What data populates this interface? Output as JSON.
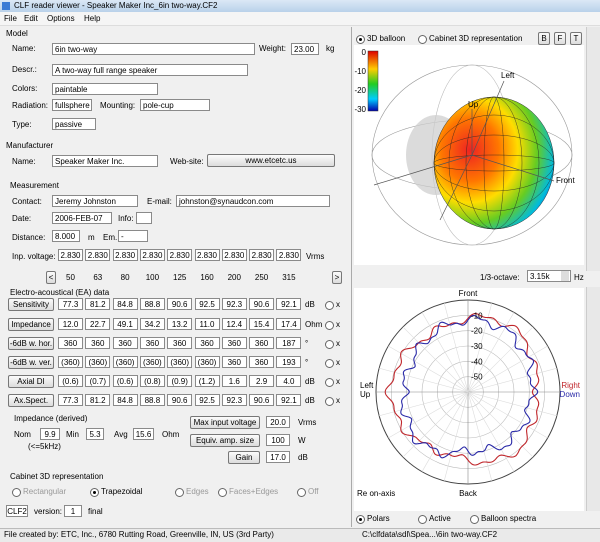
{
  "window": {
    "title": "CLF reader viewer - Speaker Maker Inc_6in two-way.CF2",
    "menu": [
      "File",
      "Edit",
      "Options",
      "Help"
    ]
  },
  "model": {
    "heading": "Model",
    "name_label": "Name:",
    "name": "6in two-way",
    "weight_label": "Weight:",
    "weight": "23.00",
    "weight_unit": "kg",
    "descr_label": "Descr.:",
    "descr": "A two-way full range speaker",
    "colors_label": "Colors:",
    "colors": "paintable",
    "radiation_label": "Radiation:",
    "radiation": "fullsphere",
    "mounting_label": "Mounting:",
    "mounting": "pole-cup",
    "type_label": "Type:",
    "type": "passive"
  },
  "manufacturer": {
    "heading": "Manufacturer",
    "name_label": "Name:",
    "name": "Speaker Maker Inc.",
    "website_label": "Web-site:",
    "website": "www.etcetc.us"
  },
  "measurement": {
    "heading": "Measurement",
    "contact_label": "Contact:",
    "contact": "Jeremy Johnston",
    "email_label": "E-mail:",
    "email": "johnston@synaudcon.com",
    "date_label": "Date:",
    "date": "2006-FEB-07",
    "info_label": "Info:",
    "distance_label": "Distance:",
    "distance": "8.000",
    "distance_unit": "m",
    "em_label": "Em.:",
    "em": "-",
    "voltage_label": "Inp. voltage:",
    "voltages": [
      "2.830",
      "2.830",
      "2.830",
      "2.830",
      "2.830",
      "2.830",
      "2.830",
      "2.830",
      "2.830"
    ],
    "voltage_unit": "Vrms",
    "prev": "<",
    "next": ">",
    "frequencies": [
      50,
      63,
      80,
      100,
      125,
      160,
      200,
      250,
      315
    ]
  },
  "ea": {
    "heading": "Electro-acoustical (EA) data",
    "marker": "x",
    "rows": [
      {
        "label": "Sensitivity",
        "values": [
          "77.3",
          "81.2",
          "84.8",
          "88.8",
          "90.6",
          "92.5",
          "92.3",
          "90.6",
          "92.1"
        ],
        "unit": "dB"
      },
      {
        "label": "Impedance",
        "values": [
          "12.0",
          "22.7",
          "49.1",
          "34.2",
          "13.2",
          "11.0",
          "12.4",
          "15.4",
          "17.4"
        ],
        "unit": "Ohm"
      },
      {
        "label": "-6dB w. hor.",
        "values": [
          "360",
          "360",
          "360",
          "360",
          "360",
          "360",
          "360",
          "360",
          "187"
        ],
        "unit": "°"
      },
      {
        "label": "-6dB w. ver.",
        "values": [
          "(360)",
          "(360)",
          "(360)",
          "(360)",
          "(360)",
          "(360)",
          "360",
          "360",
          "193"
        ],
        "unit": "°"
      },
      {
        "label": "Axial DI",
        "values": [
          "(0.6)",
          "(0.7)",
          "(0.6)",
          "(0.8)",
          "(0.9)",
          "(1.2)",
          "1.6",
          "2.9",
          "4.0"
        ],
        "unit": "dB"
      },
      {
        "label": "Ax.Spect.",
        "values": [
          "77.3",
          "81.2",
          "84.8",
          "88.8",
          "90.6",
          "92.5",
          "92.3",
          "90.6",
          "92.1"
        ],
        "unit": "dB"
      }
    ]
  },
  "impedance": {
    "heading": "Impedance (derived)",
    "nom_label": "Nom",
    "nom": "9.9",
    "min_label": "Min",
    "min": "5.3",
    "avg_label": "Avg",
    "avg": "15.6",
    "unit": "Ohm",
    "note": "(<=5kHz)",
    "max_voltage_label": "Max input voltage",
    "max_voltage": "20.0",
    "max_voltage_unit": "Vrms",
    "amp_label": "Equiv. amp. size",
    "amp": "100",
    "amp_unit": "W",
    "gain_label": "Gain",
    "gain": "17.0",
    "gain_unit": "dB"
  },
  "cabinet": {
    "heading": "Cabinet 3D representation",
    "options": [
      "Rectangular",
      "Trapezoidal",
      "Edges",
      "Faces+Edges",
      "Off"
    ]
  },
  "version": {
    "format": "CLF2",
    "label": "version:",
    "number": "1",
    "status": "final"
  },
  "balloon": {
    "mode_balloon": "3D balloon",
    "mode_cabinet": "Cabinet 3D representation",
    "views": [
      "B",
      "F",
      "T"
    ],
    "colorbar": [
      "0",
      "-10",
      "-20",
      "-30"
    ],
    "left": "Left",
    "up": "Up",
    "front": "Front"
  },
  "polar": {
    "octave_label": "1/3-octave:",
    "octave": "3.15k",
    "octave_unit": "Hz",
    "front": "Front",
    "back": "Back",
    "left": "Left",
    "left2": "Up",
    "right": "Right",
    "right2": "Down",
    "rings": [
      "-10",
      "-20",
      "-30",
      "-40",
      "-50"
    ],
    "reference": "Re on-axis",
    "tabs": [
      "Polars",
      "Active",
      "Balloon spectra"
    ]
  },
  "status": {
    "creator": "File created by: ETC, Inc., 6780 Rutting Road, Greenville, IN, US (3rd Party)",
    "path": "C:\\clfdata\\sdl\\Spea...\\6in two-way.CF2"
  }
}
